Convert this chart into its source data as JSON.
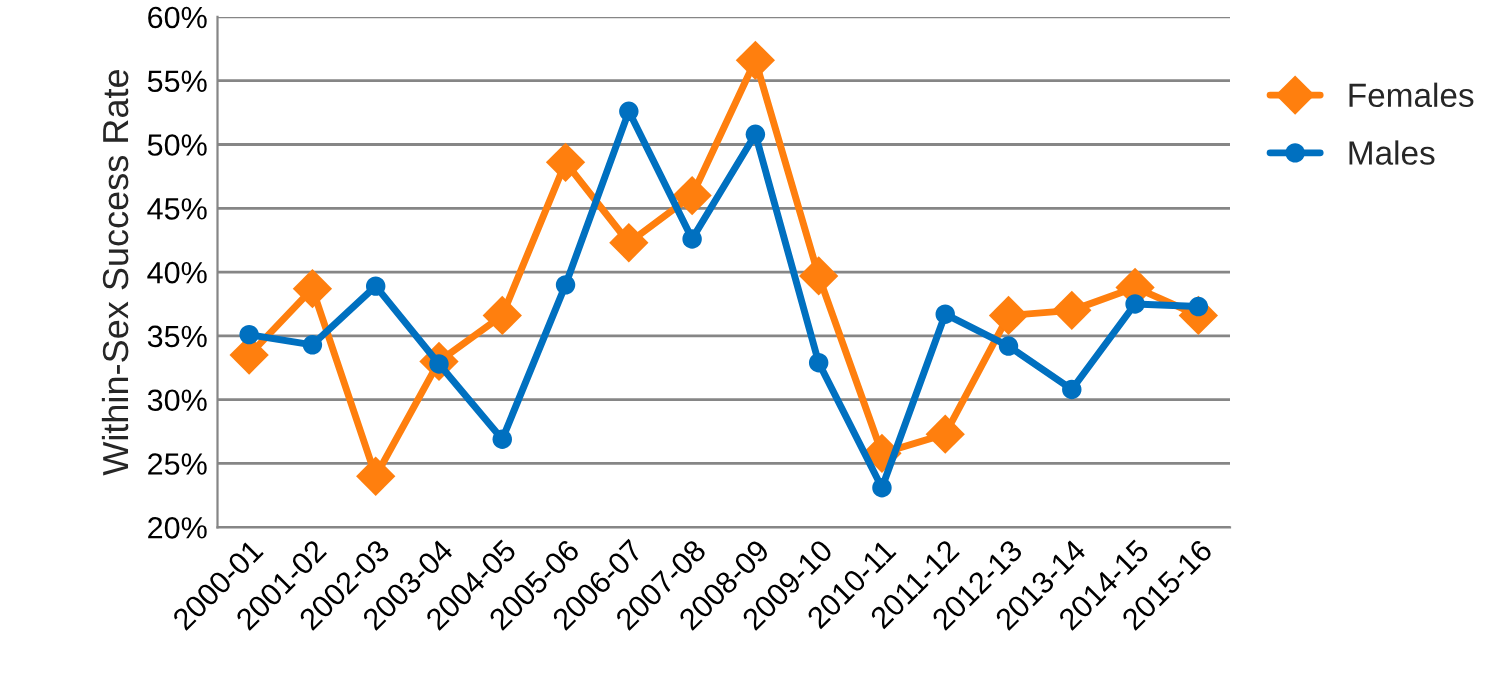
{
  "chart_data": {
    "type": "line",
    "ylabel": "Within-Sex Success Rate",
    "categories": [
      "2000-01",
      "2001-02",
      "2002-03",
      "2003-04",
      "2004-05",
      "2005-06",
      "2006-07",
      "2007-08",
      "2008-09",
      "2009-10",
      "2010-11",
      "2011-12",
      "2012-13",
      "2013-14",
      "2014-15",
      "2015-16"
    ],
    "series": [
      {
        "name": "Females",
        "color": "#ff7f0e",
        "marker": "diamond",
        "values": [
          33.5,
          38.7,
          24.0,
          33.0,
          36.6,
          48.6,
          42.3,
          46.0,
          56.6,
          39.7,
          25.8,
          27.3,
          36.6,
          37.0,
          38.8,
          36.6
        ]
      },
      {
        "name": "Males",
        "color": "#0070c0",
        "marker": "circle",
        "values": [
          35.1,
          34.3,
          38.9,
          32.8,
          26.9,
          39.0,
          52.6,
          42.6,
          50.8,
          32.9,
          23.1,
          36.7,
          34.2,
          30.8,
          37.5,
          37.3
        ]
      }
    ],
    "ylim": [
      20,
      60
    ],
    "yticks": [
      {
        "value": 20,
        "label": "20%"
      },
      {
        "value": 25,
        "label": "25%"
      },
      {
        "value": 30,
        "label": "30%"
      },
      {
        "value": 35,
        "label": "35%"
      },
      {
        "value": 40,
        "label": "40%"
      },
      {
        "value": 45,
        "label": "45%"
      },
      {
        "value": 50,
        "label": "50%"
      },
      {
        "value": 55,
        "label": "55%"
      },
      {
        "value": 60,
        "label": "60%"
      }
    ],
    "grid": "y",
    "legend": "right",
    "line_style": "solid"
  }
}
